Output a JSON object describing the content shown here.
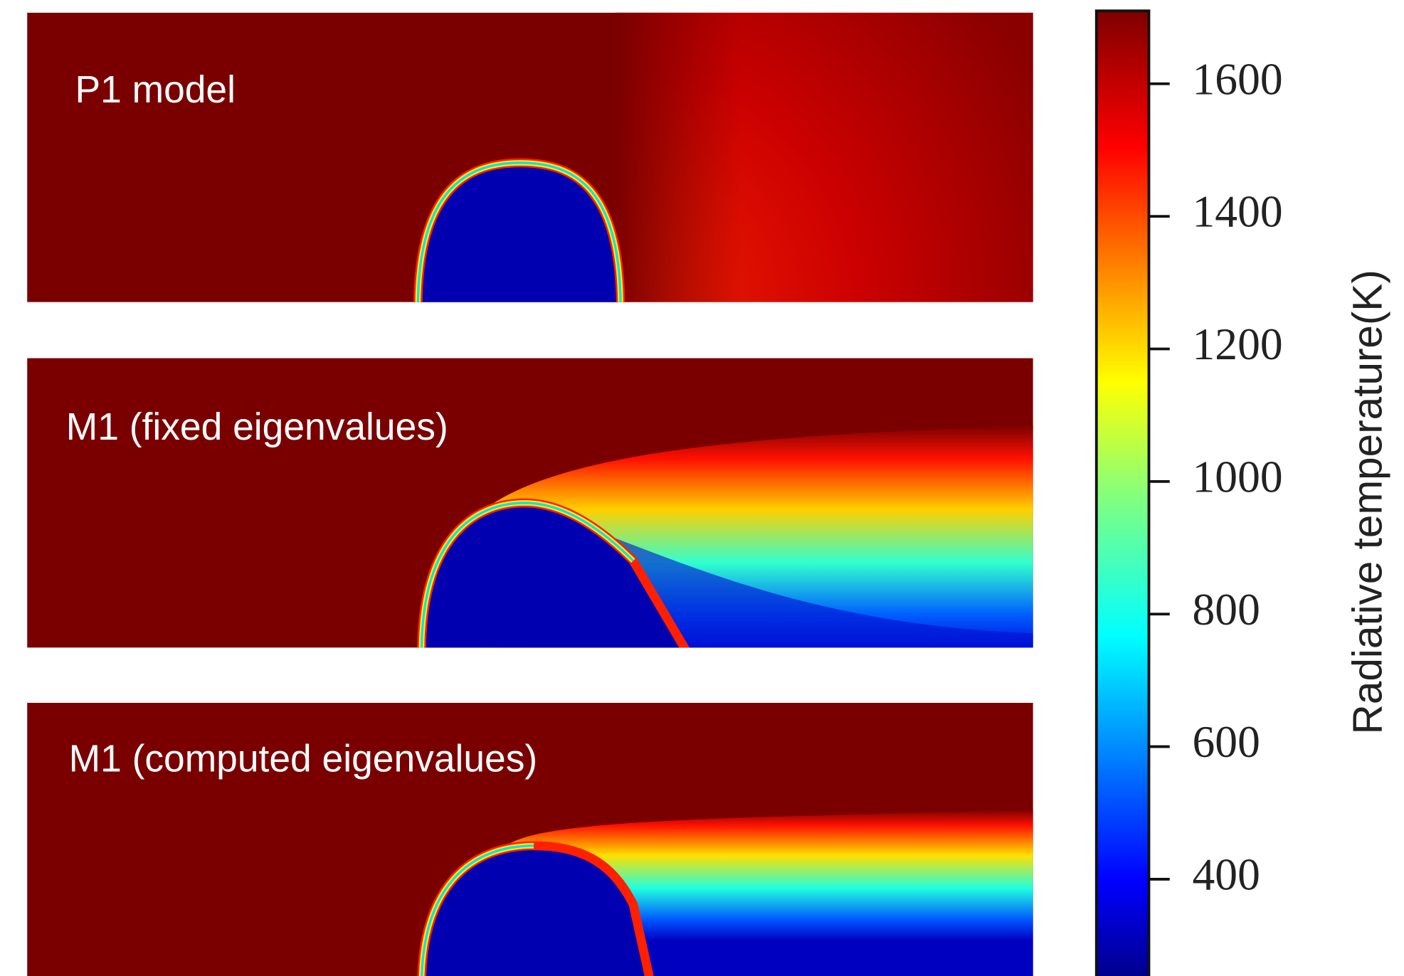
{
  "chart_data": {
    "type": "colorbar",
    "label": "Radiative temperature(K)",
    "ylim": [
      254,
      1710
    ],
    "yticks": [
      400,
      600,
      800,
      1000,
      1200,
      1400,
      1600
    ]
  },
  "panels": [
    {
      "label": "P1 model"
    },
    {
      "label": "M1 (fixed eigenvalues)"
    },
    {
      "label": "M1 (computed eigenvalues)"
    }
  ]
}
